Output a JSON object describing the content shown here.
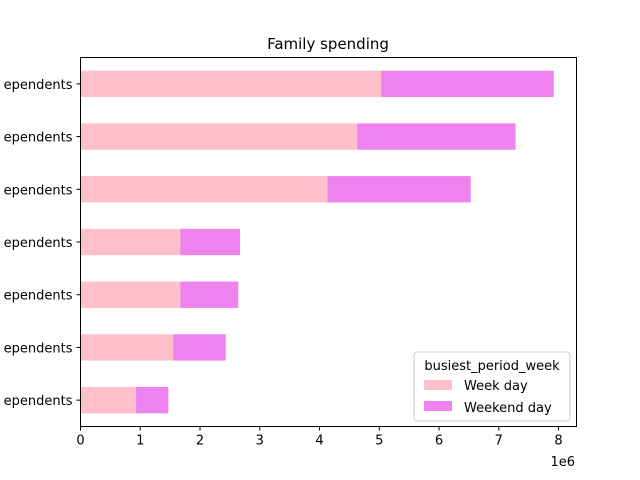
{
  "chart_data": {
    "type": "bar",
    "orientation": "horizontal",
    "stacked": true,
    "title": "Family spending",
    "categories": [
      "ependents",
      "ependents",
      "ependents",
      "ependents",
      "ependents",
      "ependents",
      "ependents"
    ],
    "series": [
      {
        "name": "Week day",
        "color": "#ffc0cb",
        "values": [
          0.93,
          1.55,
          1.67,
          1.67,
          4.13,
          4.63,
          5.03
        ]
      },
      {
        "name": "Weekend day",
        "color": "#ee82ee",
        "values": [
          0.54,
          0.88,
          0.97,
          1.0,
          2.4,
          2.65,
          2.89
        ]
      }
    ],
    "xlim": [
      0,
      8.3
    ],
    "xticks": [
      "0",
      "1",
      "2",
      "3",
      "4",
      "5",
      "6",
      "7",
      "8"
    ],
    "x_scale_label": "1e6",
    "legend": {
      "title": "busiest_period_week",
      "placement": "lower-right"
    },
    "grid": false
  }
}
